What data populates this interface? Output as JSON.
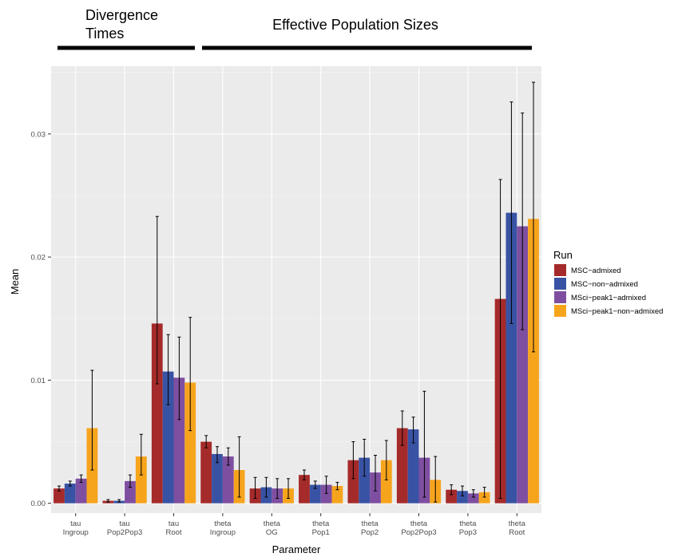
{
  "chart_data": {
    "type": "bar",
    "xlabel": "Parameter",
    "ylabel": "Mean",
    "ylim": [
      -0.0008,
      0.0355
    ],
    "grid": true,
    "legend_position": "right",
    "legend_title": "Run",
    "yticks": [
      {
        "value": 0.0,
        "label": "0.00"
      },
      {
        "value": 0.01,
        "label": "0.01"
      },
      {
        "value": 0.02,
        "label": "0.02"
      },
      {
        "value": 0.03,
        "label": "0.03"
      }
    ],
    "categories": [
      [
        "tau",
        "Ingroup"
      ],
      [
        "tau",
        "Pop2Pop3"
      ],
      [
        "tau",
        "Root"
      ],
      [
        "theta",
        "Ingroup"
      ],
      [
        "theta",
        "OG"
      ],
      [
        "theta",
        "Pop1"
      ],
      [
        "theta",
        "Pop2"
      ],
      [
        "theta",
        "Pop2Pop3"
      ],
      [
        "theta",
        "Pop3"
      ],
      [
        "theta",
        "Root"
      ]
    ],
    "series": [
      {
        "name": "MSC−admixed",
        "color": "#A52A2A",
        "values": [
          0.0012,
          0.0002,
          0.0146,
          0.005,
          0.0012,
          0.0023,
          0.0035,
          0.0061,
          0.0011,
          0.0166
        ],
        "error_low": [
          0.001,
          0.0001,
          0.0097,
          0.0045,
          0.0004,
          0.0019,
          0.002,
          0.0047,
          0.0007,
          0.0004
        ],
        "error_high": [
          0.0014,
          0.0003,
          0.0233,
          0.0055,
          0.0021,
          0.0027,
          0.005,
          0.0075,
          0.0015,
          0.0263
        ]
      },
      {
        "name": "MSC−non−admixed",
        "color": "#3953A4",
        "values": [
          0.0016,
          0.0002,
          0.0107,
          0.004,
          0.0013,
          0.0015,
          0.0037,
          0.006,
          0.001,
          0.0236
        ],
        "error_low": [
          0.0014,
          0.0001,
          0.008,
          0.0033,
          0.0005,
          0.0012,
          0.0022,
          0.0049,
          0.0006,
          0.0146
        ],
        "error_high": [
          0.0018,
          0.0003,
          0.0137,
          0.0046,
          0.0021,
          0.0018,
          0.0052,
          0.007,
          0.0014,
          0.0326
        ]
      },
      {
        "name": "MSci−peak1−admixed",
        "color": "#7E4FA0",
        "values": [
          0.002,
          0.0018,
          0.0102,
          0.0038,
          0.0012,
          0.0015,
          0.0025,
          0.0037,
          0.0008,
          0.0225
        ],
        "error_low": [
          0.0017,
          0.0013,
          0.0068,
          0.0031,
          0.0004,
          0.0008,
          0.001,
          0.0005,
          0.0005,
          0.0141
        ],
        "error_high": [
          0.0023,
          0.0023,
          0.0135,
          0.0045,
          0.002,
          0.0022,
          0.0039,
          0.0091,
          0.0011,
          0.0317
        ]
      },
      {
        "name": "MSci−peak1−non−admixed",
        "color": "#F7A41D",
        "values": [
          0.0061,
          0.0038,
          0.0098,
          0.0027,
          0.0012,
          0.0014,
          0.0035,
          0.0019,
          0.0009,
          0.0231
        ],
        "error_low": [
          0.0027,
          0.0023,
          0.0059,
          0.0005,
          0.0004,
          0.0011,
          0.0019,
          0.0001,
          0.0005,
          0.0123
        ],
        "error_high": [
          0.0108,
          0.0056,
          0.0151,
          0.0054,
          0.002,
          0.0017,
          0.0051,
          0.0038,
          0.0013,
          0.0342
        ]
      }
    ],
    "annotations": [
      {
        "id": "divergence",
        "lines": [
          "Divergence",
          "Times"
        ],
        "spans_categories": [
          0,
          2
        ]
      },
      {
        "id": "effective",
        "lines": [
          "Effective Population Sizes"
        ],
        "spans_categories": [
          3,
          9
        ]
      }
    ]
  }
}
